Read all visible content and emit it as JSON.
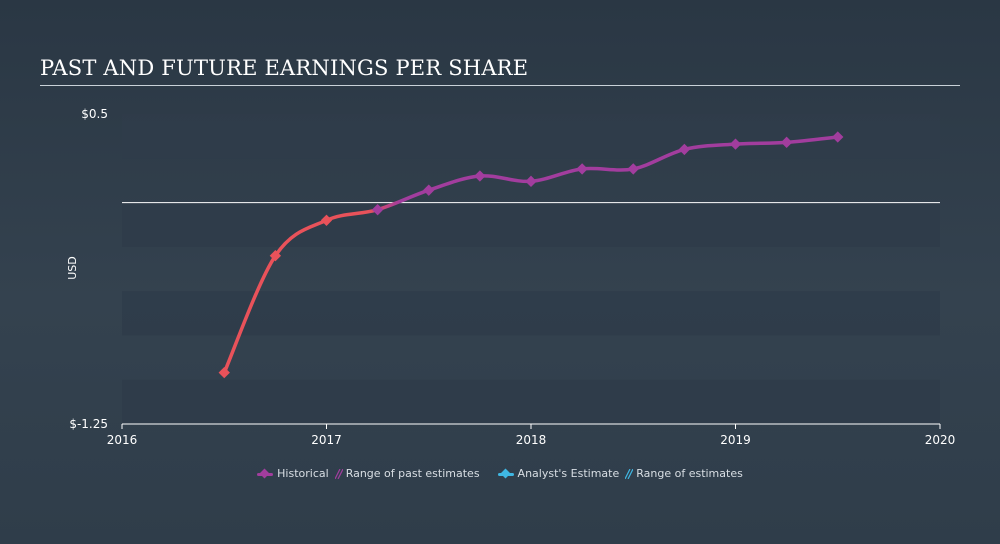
{
  "title": "PAST AND FUTURE EARNINGS PER SHARE",
  "colors": {
    "historical": "#a23d9e",
    "historical_negative": "#e9525a",
    "estimate": "#3fb7e3",
    "band": "#2f3c4a",
    "zero_line": "#ffffff",
    "axis": "#ffffff",
    "tick_text": "#ffffff"
  },
  "chart_data": {
    "type": "line",
    "title": "PAST AND FUTURE EARNINGS PER SHARE",
    "ylabel": "USD",
    "xlim": [
      2016,
      2020
    ],
    "ylim": [
      -1.25,
      0.5
    ],
    "y_ticks": [
      {
        "value": 0.5,
        "label": "$0.5"
      },
      {
        "value": -1.25,
        "label": "$-1.25"
      }
    ],
    "x_ticks": [
      {
        "value": 2016,
        "label": "2016"
      },
      {
        "value": 2017,
        "label": "2017"
      },
      {
        "value": 2018,
        "label": "2018"
      },
      {
        "value": 2019,
        "label": "2019"
      },
      {
        "value": 2020,
        "label": "2020"
      }
    ],
    "zero_line": 0,
    "series": [
      {
        "name": "Historical",
        "x": [
          2016.5,
          2016.75,
          2017.0,
          2017.25,
          2017.5,
          2017.75,
          2018.0,
          2018.25,
          2018.5,
          2018.75,
          2019.0,
          2019.25,
          2019.5
        ],
        "y": [
          -0.96,
          -0.3,
          -0.1,
          -0.04,
          0.07,
          0.15,
          0.12,
          0.19,
          0.19,
          0.3,
          0.33,
          0.34,
          0.37
        ]
      }
    ]
  },
  "legend": {
    "historical": "Historical",
    "past_range": "Range of past estimates",
    "analyst": "Analyst's Estimate",
    "future_range": "Range of estimates"
  }
}
